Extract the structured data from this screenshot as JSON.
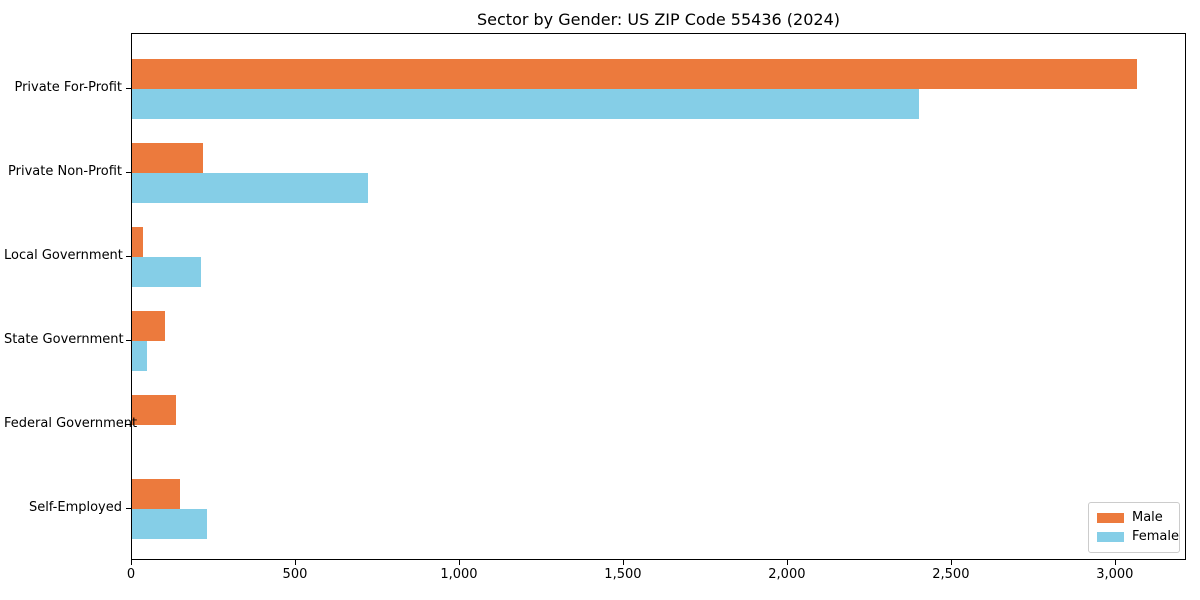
{
  "title": "Sector by Gender: US ZIP Code 55436 (2024)",
  "chart_data": {
    "type": "bar",
    "orientation": "horizontal",
    "title": "Sector by Gender: US ZIP Code 55436 (2024)",
    "categories": [
      "Private For-Profit",
      "Private Non-Profit",
      "Local Government",
      "State Government",
      "Federal Government",
      "Self-Employed"
    ],
    "series": [
      {
        "name": "Male",
        "color": "#ec7a3d",
        "values": [
          3065,
          215,
          35,
          100,
          135,
          145
        ]
      },
      {
        "name": "Female",
        "color": "#85cee7",
        "values": [
          2400,
          720,
          210,
          45,
          0,
          230
        ]
      }
    ],
    "xlabel": "",
    "ylabel": "",
    "xlim": [
      0,
      3217
    ],
    "xticks": [
      0,
      500,
      1000,
      1500,
      2000,
      2500,
      3000
    ],
    "xtick_labels": [
      "0",
      "500",
      "1,000",
      "1,500",
      "2,000",
      "2,500",
      "3,000"
    ],
    "grid": false,
    "background_color": "#ffffff",
    "spine_color": "#000000",
    "legend": {
      "position": "lower right",
      "entries": [
        "Male",
        "Female"
      ]
    }
  }
}
